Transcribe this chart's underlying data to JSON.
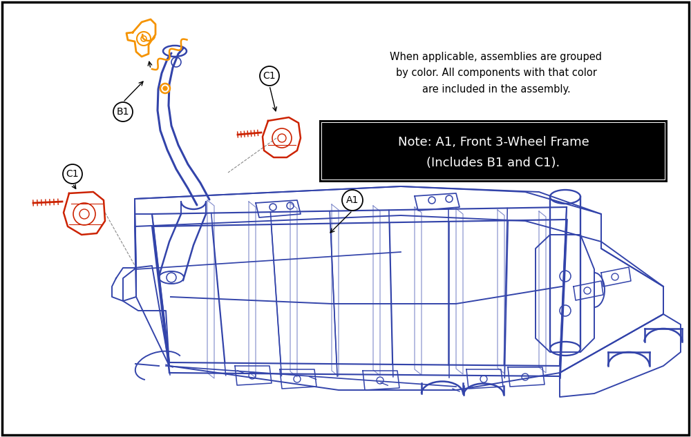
{
  "bg_color": "#ffffff",
  "diagram_color": "#3344aa",
  "orange_color": "#f59300",
  "red_color": "#cc2200",
  "label_bg": "#000000",
  "label_fg": "#ffffff",
  "note_line1": "Note: A1, Front 3-Wheel Frame",
  "note_line2": "(Includes B1 and C1).",
  "info_text": "When applicable, assemblies are grouped\nby color. All components with that color\nare included in the assembly.",
  "label_A1": "A1",
  "label_B1": "B1",
  "label_C1a": "C1",
  "label_C1b": "C1",
  "figsize": [
    10.0,
    6.33
  ],
  "dpi": 100
}
